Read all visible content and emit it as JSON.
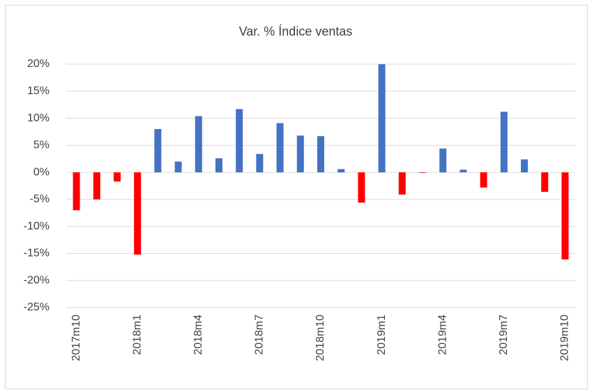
{
  "chart_data": {
    "type": "bar",
    "title": "Var. % Índice ventas",
    "categories": [
      "2017m10",
      null,
      null,
      "2018m1",
      null,
      null,
      "2018m4",
      null,
      null,
      "2018m7",
      null,
      null,
      "2018m10",
      null,
      null,
      "2019m1",
      null,
      null,
      "2019m4",
      null,
      null,
      "2019m7",
      null,
      null,
      "2019m10"
    ],
    "values": [
      -7,
      -5,
      -1.7,
      -15.2,
      8.0,
      2.0,
      10.4,
      2.6,
      11.7,
      3.4,
      9.1,
      6.8,
      6.7,
      0.6,
      -5.6,
      20.0,
      -4.1,
      -0.1,
      4.4,
      0.5,
      -2.8,
      11.2,
      2.4,
      -3.6,
      -16.1
    ],
    "color": "#4472c4",
    "negative_color": "#ff0000",
    "ylim": [
      -25,
      20
    ],
    "yticks": [
      {
        "value": -25,
        "label": "-25%"
      },
      {
        "value": -20,
        "label": "-20%"
      },
      {
        "value": -15,
        "label": "-15%"
      },
      {
        "value": -10,
        "label": "-10%"
      },
      {
        "value": -5,
        "label": "-5%"
      },
      {
        "value": 0,
        "label": "0%"
      },
      {
        "value": 5,
        "label": "5%"
      },
      {
        "value": 10,
        "label": "10%"
      },
      {
        "value": 15,
        "label": "15%"
      },
      {
        "value": 20,
        "label": "20%"
      }
    ],
    "grid": true
  }
}
